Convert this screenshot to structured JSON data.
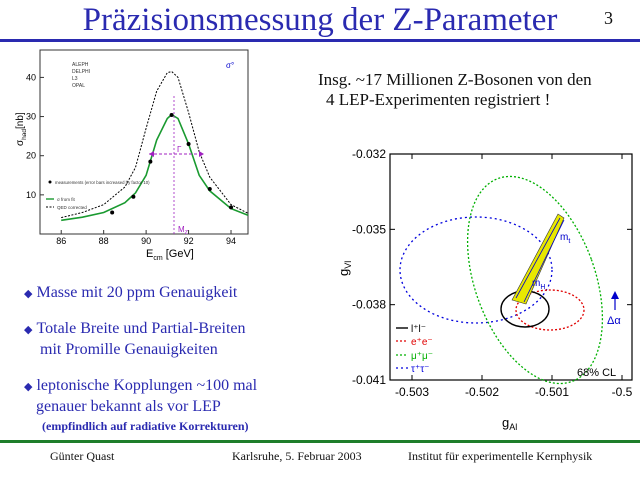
{
  "slide": {
    "title": "Präzisionsmessung der Z-Parameter",
    "page_number": "3",
    "intro_line1": "Insg. ~17 Millionen Z-Bosonen von den",
    "intro_line2": "4 LEP-Experimenten registriert !",
    "bullets": [
      {
        "line1": "Masse mit 20 ppm Genauigkeit",
        "line2": ""
      },
      {
        "line1": "Totale Breite und Partial-Breiten",
        "line2": "mit Promille Genauigkeiten"
      },
      {
        "line1": "leptonische Kopplungen ~100 mal",
        "line2": "genauer bekannt als vor LEP"
      }
    ],
    "note": "(empfindlich auf radiative Korrekturen)",
    "colors": {
      "title": "#2a2ab0",
      "footer_rule": "#1e7e2a"
    }
  },
  "footer": {
    "author": "Günter Quast",
    "place_date": "Karlsruhe,  5. Februar 2003",
    "institute": "Institut für experimentelle Kernphysik"
  },
  "chart_data": [
    {
      "type": "line",
      "xlabel_main": "E",
      "xlabel_sub": "cm",
      "xlabel_unit": " [GeV]",
      "ylabel_main": "σ",
      "ylabel_sub": "had",
      "ylabel_unit": "[nb]",
      "xlim": [
        85,
        94.8
      ],
      "ylim": [
        0,
        47
      ],
      "x_ticks": [
        86,
        88,
        90,
        92,
        94
      ],
      "y_ticks": [
        10,
        20,
        30,
        40
      ],
      "corner_label": "σ°",
      "legend_experiments": [
        "ALEPH",
        "DELPHI",
        "L3",
        "OPAL"
      ],
      "legend_lower": [
        "measurements (error bars increased by factor 10)",
        "σ from fit",
        "QED corrected"
      ],
      "annotation_width": "Γ",
      "annotation_mass": "M",
      "annotation_mass_sub": "Z",
      "series": [
        {
          "x": [
            86,
            87,
            88,
            89,
            89.5,
            90,
            90.5,
            91,
            91.2,
            91.5,
            92,
            92.5,
            93,
            94,
            94.8
          ],
          "y": [
            3.5,
            4.3,
            5.5,
            8.0,
            10.5,
            15,
            24,
            29.5,
            30.5,
            29.5,
            23,
            15,
            11,
            6.5,
            4.8
          ]
        },
        {
          "x": [
            86,
            87,
            88,
            89,
            89.5,
            90,
            90.5,
            91,
            91.2,
            91.5,
            92,
            92.5,
            93,
            94,
            94.8
          ],
          "y": [
            4.2,
            5.5,
            7.5,
            12,
            17,
            27,
            36.5,
            41.2,
            41.5,
            40,
            31,
            21,
            14.5,
            7.5,
            5.3
          ]
        }
      ],
      "points": [
        {
          "x": 88.4,
          "y": 5.5
        },
        {
          "x": 89.4,
          "y": 9.5
        },
        {
          "x": 90.2,
          "y": 18.5
        },
        {
          "x": 91.2,
          "y": 30.4
        },
        {
          "x": 92.0,
          "y": 23
        },
        {
          "x": 93.0,
          "y": 11.5
        },
        {
          "x": 94.0,
          "y": 6.8
        }
      ]
    },
    {
      "type": "scatter",
      "xlabel_main": "g",
      "xlabel_sub": "Al",
      "ylabel_main": "g",
      "ylabel_sub": "Vl",
      "xlim": [
        -0.5035,
        -0.4995
      ],
      "ylim": [
        -0.041,
        -0.032
      ],
      "x_ticks": [
        "-0.503",
        "-0.502",
        "-0.501",
        "-0.5"
      ],
      "y_ticks": [
        "-0.032",
        "-0.035",
        "-0.038",
        "-0.041"
      ],
      "legend": [
        {
          "name": "l⁺l⁻",
          "color": "#000000"
        },
        {
          "name": "e⁺e⁻",
          "color": "#e00000"
        },
        {
          "name": "μ⁺μ⁻",
          "color": "#00b000"
        },
        {
          "name": "τ⁺τ⁻",
          "color": "#0000dd"
        }
      ],
      "confidence_label": "68% CL",
      "annotation_mt": "m",
      "annotation_mt_sub": "t",
      "annotation_mh": "m",
      "annotation_mh_sub": "H",
      "annotation_delta_alpha": "Δα",
      "colors": {
        "band": "#e8e800"
      }
    }
  ]
}
